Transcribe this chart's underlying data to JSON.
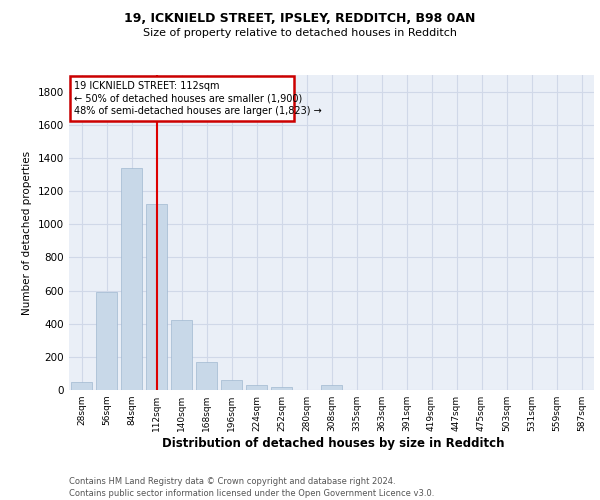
{
  "title1": "19, ICKNIELD STREET, IPSLEY, REDDITCH, B98 0AN",
  "title2": "Size of property relative to detached houses in Redditch",
  "xlabel": "Distribution of detached houses by size in Redditch",
  "ylabel": "Number of detached properties",
  "footer1": "Contains HM Land Registry data © Crown copyright and database right 2024.",
  "footer2": "Contains public sector information licensed under the Open Government Licence v3.0.",
  "bin_labels": [
    "28sqm",
    "56sqm",
    "84sqm",
    "112sqm",
    "140sqm",
    "168sqm",
    "196sqm",
    "224sqm",
    "252sqm",
    "280sqm",
    "308sqm",
    "335sqm",
    "363sqm",
    "391sqm",
    "419sqm",
    "447sqm",
    "475sqm",
    "503sqm",
    "531sqm",
    "559sqm",
    "587sqm"
  ],
  "bar_values": [
    50,
    590,
    1340,
    1120,
    420,
    170,
    60,
    30,
    20,
    0,
    30,
    0,
    0,
    0,
    0,
    0,
    0,
    0,
    0,
    0,
    0
  ],
  "bar_color": "#c8d8e8",
  "bar_edge_color": "#a0b8d0",
  "property_line_index": 3,
  "property_line_label": "19 ICKNIELD STREET: 112sqm",
  "annotation_line1": "← 50% of detached houses are smaller (1,900)",
  "annotation_line2": "48% of semi-detached houses are larger (1,823) →",
  "annotation_box_color": "#cc0000",
  "ylim": [
    0,
    1900
  ],
  "yticks": [
    0,
    200,
    400,
    600,
    800,
    1000,
    1200,
    1400,
    1600,
    1800
  ],
  "grid_color": "#d0d8e8",
  "plot_bg_color": "#eaeff7"
}
